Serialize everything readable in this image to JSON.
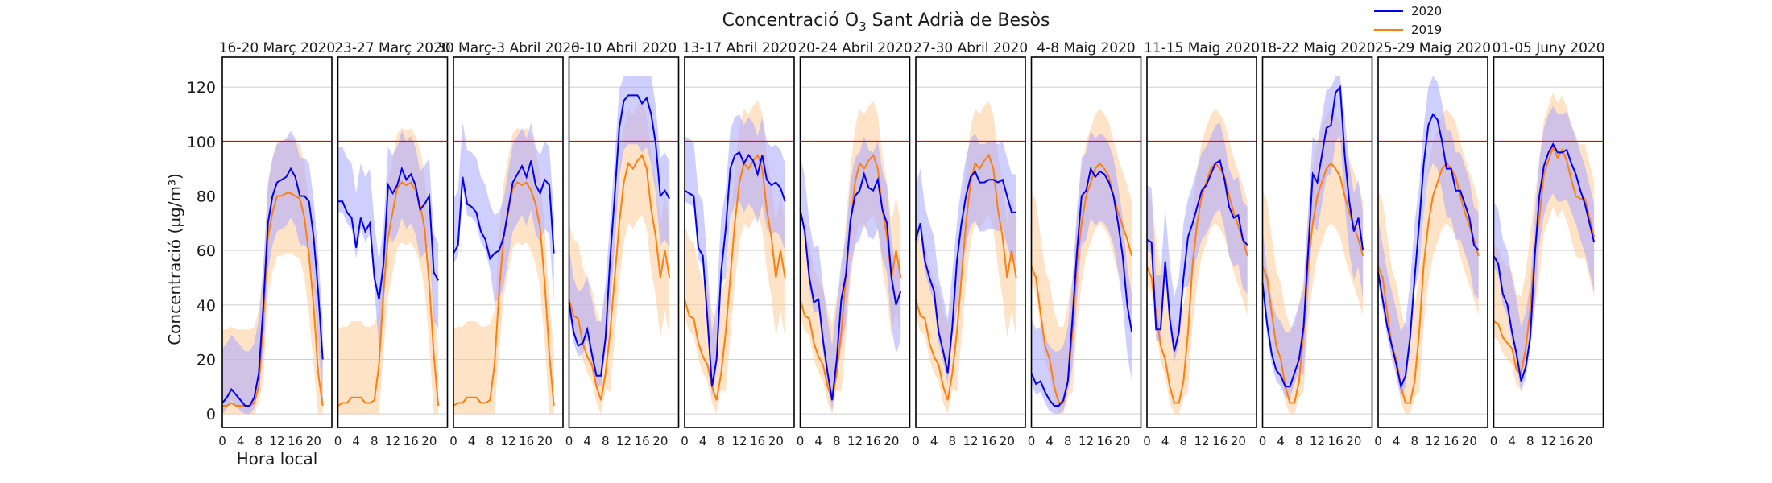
{
  "chart_data": {
    "type": "line",
    "title_main": "Concentració O",
    "title_sub": "3",
    "title_rest": " Sant Adrià de Besòs",
    "ylabel": "Concentració (µg/m³)",
    "xlabel": "Hora local",
    "ylim": [
      -5,
      131
    ],
    "yticks": [
      0,
      20,
      40,
      60,
      80,
      100,
      120
    ],
    "xlim": [
      0,
      24
    ],
    "xticks": [
      "0",
      "4",
      "8",
      "12",
      "16",
      "20"
    ],
    "threshold": 100,
    "grid": true,
    "legend_position": "top-right",
    "colors": {
      "s2020": "#0000ee",
      "s2019": "#ff7f0e",
      "band2020": "#a8a8ff",
      "band2019": "#ffcc99",
      "threshold": "#ee0000"
    },
    "series_names": [
      "2020",
      "2019"
    ],
    "panels": [
      {
        "title": "16-20 Març 2020",
        "s2020": [
          4,
          6,
          9,
          7,
          5,
          3,
          3,
          6,
          15,
          40,
          70,
          80,
          85,
          86,
          87,
          90,
          87,
          80,
          80,
          78,
          65,
          45,
          20
        ],
        "s2019": [
          3,
          3,
          4,
          3,
          3,
          3,
          3,
          4,
          10,
          35,
          65,
          74,
          80,
          80,
          81,
          81,
          80,
          79,
          72,
          58,
          40,
          15,
          3
        ]
      },
      {
        "title": "23-27 Març 2020",
        "s2020": [
          78,
          78,
          74,
          72,
          61,
          72,
          67,
          70,
          50,
          42,
          55,
          84,
          81,
          84,
          90,
          86,
          88,
          84,
          75,
          77,
          80,
          52,
          49
        ],
        "s2019": [
          3,
          4,
          4,
          6,
          6,
          6,
          4,
          4,
          5,
          18,
          45,
          65,
          74,
          83,
          85,
          84,
          85,
          82,
          77,
          68,
          48,
          22,
          3
        ]
      },
      {
        "title": "30 Març-3 Abril 2020",
        "s2020": [
          59,
          62,
          87,
          77,
          76,
          74,
          67,
          64,
          57,
          59,
          60,
          65,
          75,
          85,
          88,
          91,
          87,
          93,
          84,
          81,
          86,
          84,
          59
        ],
        "s2019": [
          3,
          4,
          4,
          6,
          6,
          6,
          4,
          4,
          5,
          18,
          45,
          65,
          74,
          83,
          85,
          84,
          85,
          82,
          77,
          68,
          48,
          22,
          3
        ]
      },
      {
        "title": "6-10 Abril 2020",
        "s2020": [
          41,
          30,
          25,
          26,
          31,
          22,
          14,
          14,
          28,
          57,
          80,
          105,
          115,
          117,
          117,
          117,
          114,
          116,
          110,
          99,
          80,
          82,
          79
        ],
        "s2019": [
          42,
          36,
          35,
          26,
          21,
          18,
          10,
          5,
          15,
          30,
          50,
          70,
          85,
          92,
          90,
          93,
          95,
          90,
          75,
          65,
          50,
          60,
          50
        ]
      },
      {
        "title": "13-17 Abril 2020",
        "s2020": [
          82,
          81,
          80,
          61,
          58,
          35,
          10,
          20,
          52,
          68,
          90,
          95,
          96,
          92,
          95,
          93,
          88,
          95,
          86,
          84,
          85,
          83,
          78
        ],
        "s2019": [
          42,
          36,
          35,
          26,
          21,
          18,
          10,
          5,
          15,
          30,
          50,
          70,
          85,
          92,
          90,
          93,
          95,
          90,
          75,
          65,
          50,
          60,
          50
        ]
      },
      {
        "title": "20-24 Abril 2020",
        "s2020": [
          75,
          67,
          50,
          41,
          42,
          27,
          15,
          5,
          20,
          42,
          51,
          71,
          80,
          82,
          88,
          83,
          82,
          86,
          75,
          70,
          50,
          40,
          45
        ],
        "s2019": [
          42,
          36,
          35,
          26,
          21,
          18,
          10,
          5,
          15,
          30,
          50,
          70,
          85,
          92,
          90,
          93,
          95,
          90,
          75,
          65,
          50,
          60,
          50
        ]
      },
      {
        "title": "27-30 Abril 2020",
        "s2020": [
          64,
          70,
          56,
          50,
          45,
          30,
          23,
          15,
          32,
          56,
          70,
          80,
          87,
          89,
          85,
          85,
          86,
          86,
          85,
          86,
          80,
          74,
          74
        ],
        "s2019": [
          42,
          36,
          35,
          26,
          21,
          18,
          10,
          5,
          15,
          30,
          50,
          70,
          85,
          92,
          90,
          93,
          95,
          90,
          75,
          65,
          50,
          60,
          50
        ]
      },
      {
        "title": "4-8 Maig 2020",
        "s2020": [
          15,
          11,
          12,
          8,
          5,
          3,
          3,
          5,
          12,
          35,
          60,
          80,
          82,
          90,
          87,
          89,
          88,
          85,
          80,
          70,
          58,
          40,
          30
        ],
        "s2019": [
          54,
          50,
          37,
          25,
          20,
          10,
          4,
          4,
          12,
          30,
          55,
          70,
          80,
          85,
          90,
          92,
          90,
          87,
          80,
          74,
          69,
          64,
          58
        ]
      },
      {
        "title": "11-15 Maig 2020",
        "s2020": [
          64,
          63,
          31,
          31,
          56,
          35,
          23,
          30,
          50,
          65,
          70,
          76,
          82,
          84,
          88,
          92,
          93,
          86,
          76,
          72,
          73,
          64,
          62
        ],
        "s2019": [
          54,
          50,
          37,
          25,
          20,
          10,
          4,
          4,
          12,
          30,
          55,
          70,
          80,
          85,
          90,
          92,
          90,
          87,
          80,
          74,
          69,
          64,
          58
        ]
      },
      {
        "title": "18-22 Maig 2020",
        "s2020": [
          48,
          33,
          22,
          16,
          14,
          10,
          10,
          15,
          20,
          32,
          60,
          88,
          85,
          95,
          105,
          106,
          118,
          120,
          95,
          78,
          67,
          72,
          60
        ],
        "s2019": [
          54,
          50,
          37,
          25,
          20,
          10,
          4,
          4,
          12,
          30,
          55,
          70,
          80,
          85,
          90,
          92,
          90,
          87,
          80,
          74,
          69,
          64,
          58
        ]
      },
      {
        "title": "25-29 Maig 2020",
        "s2020": [
          52,
          42,
          32,
          25,
          18,
          10,
          14,
          28,
          50,
          70,
          92,
          106,
          110,
          108,
          100,
          90,
          90,
          82,
          82,
          77,
          72,
          62,
          60
        ],
        "s2019": [
          54,
          50,
          37,
          25,
          20,
          10,
          4,
          4,
          12,
          30,
          55,
          70,
          80,
          85,
          90,
          92,
          90,
          87,
          80,
          74,
          69,
          64,
          58
        ]
      },
      {
        "title": "01-05 Juny 2020",
        "s2020": [
          58,
          55,
          44,
          40,
          30,
          22,
          12,
          17,
          28,
          58,
          80,
          91,
          96,
          99,
          96,
          96,
          97,
          92,
          88,
          82,
          77,
          70,
          63
        ],
        "s2019": [
          34,
          33,
          28,
          26,
          24,
          16,
          15,
          24,
          38,
          60,
          72,
          88,
          93,
          98,
          94,
          97,
          93,
          86,
          80,
          79,
          79,
          72,
          65
        ]
      }
    ]
  }
}
